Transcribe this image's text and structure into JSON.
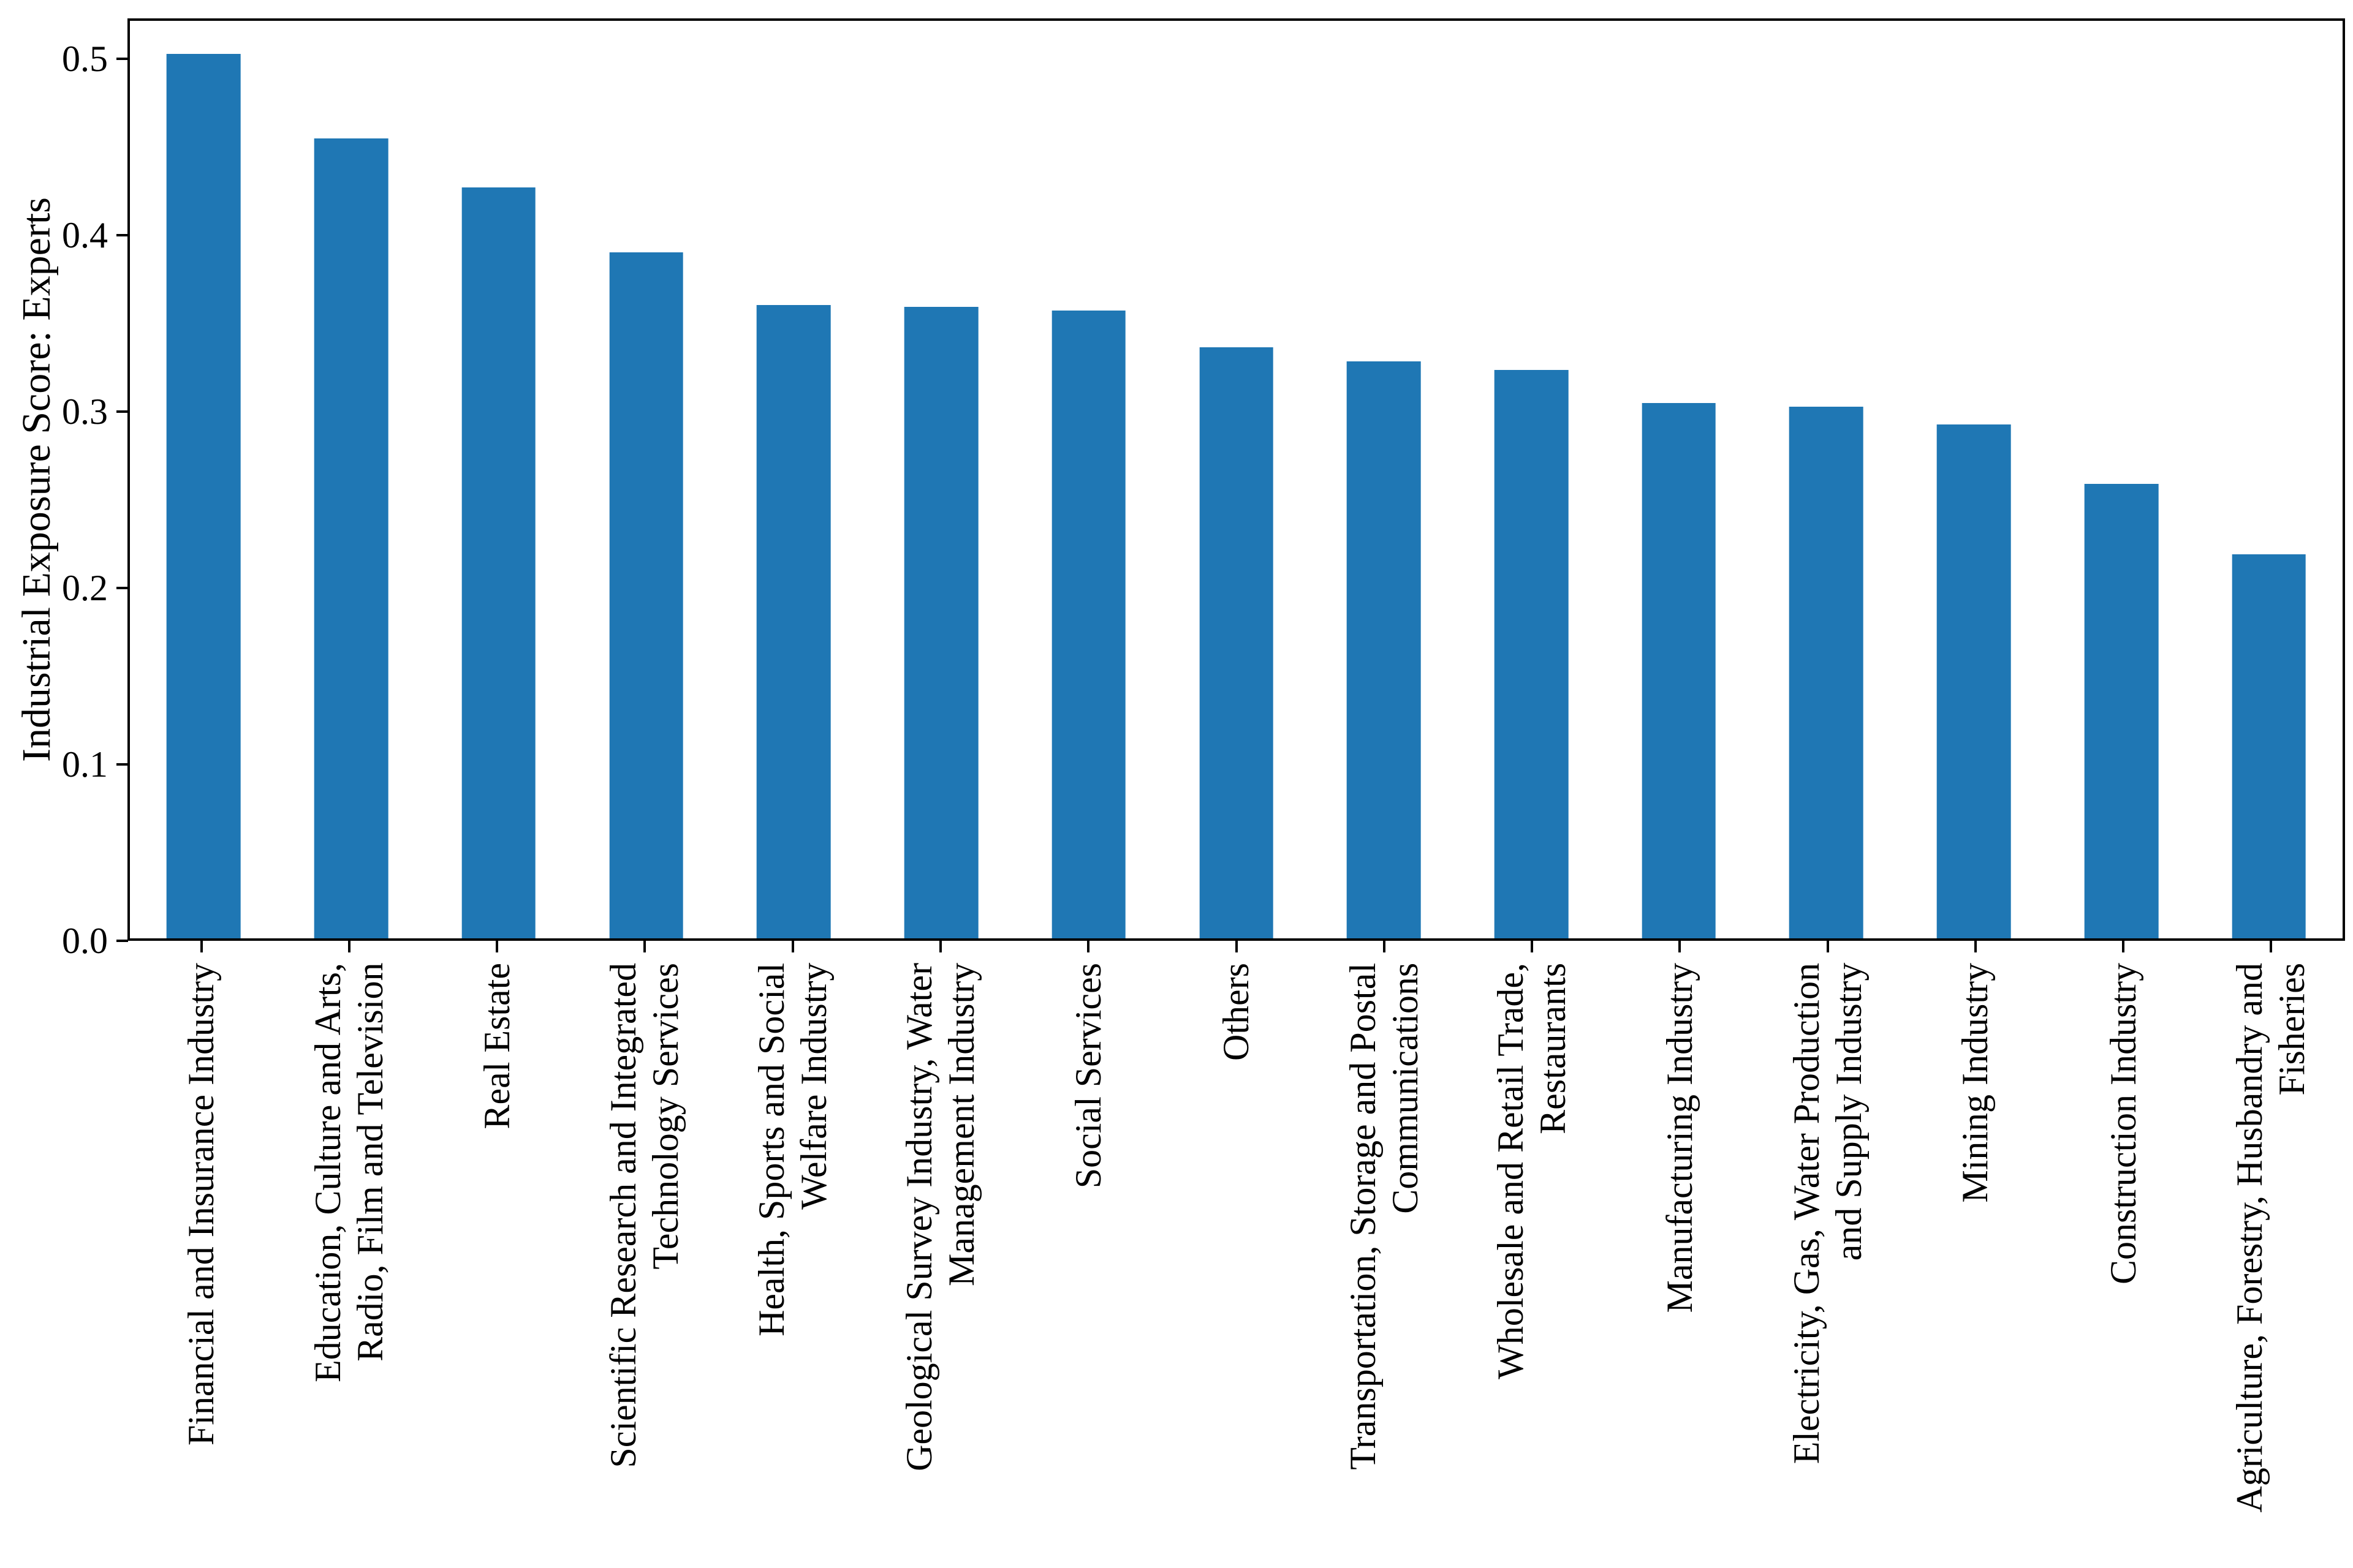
{
  "figure": {
    "background": "#ffffff",
    "ink_color": "#000000"
  },
  "chart_data": {
    "type": "bar",
    "title": "",
    "xlabel": "",
    "ylabel": "Industrial Exposure Score: Experts",
    "categories": [
      "Financial and Insurance Industry",
      "Education, Culture and Arts,\nRadio, Film and Television",
      "Real Estate",
      "Scientific Research and Integrated\nTechnology Services",
      "Health, Sports and Social\nWelfare Industry",
      "Geological Survey Industry, Water\nManagement Industry",
      "Social Services",
      "Others",
      "Transportation, Storage and Postal\nCommunications",
      "Wholesale and Retail Trade,\nRestaurants",
      "Manufacturing Industry",
      "Electricity, Gas, Water Production\nand Supply Industry",
      "Mining Industry",
      "Construction Industry",
      "Agriculture, Forestry, Husbandry and\nFisheries"
    ],
    "values": [
      0.504,
      0.456,
      0.428,
      0.391,
      0.361,
      0.36,
      0.358,
      0.337,
      0.329,
      0.324,
      0.305,
      0.303,
      0.293,
      0.259,
      0.219
    ],
    "ylim": [
      0,
      0.523
    ],
    "yticks": [
      0.0,
      0.1,
      0.2,
      0.3,
      0.4,
      0.5
    ],
    "ytick_labels": [
      "0.0",
      "0.1",
      "0.2",
      "0.3",
      "0.4",
      "0.5"
    ],
    "xtick_rotation_degrees": 90,
    "bar_color": "#1f77b4",
    "bar_width_fraction": 0.5,
    "grid": false,
    "legend": "none"
  }
}
